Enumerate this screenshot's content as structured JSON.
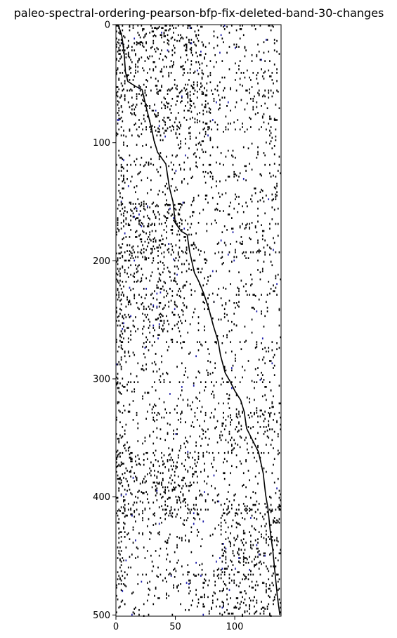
{
  "chart_data": {
    "type": "heatmap",
    "title": "paleo-spectral-ordering-pearson-bfp-fix-deleted-band-30-changes",
    "xlabel": "",
    "ylabel": "",
    "xlim": [
      0,
      139
    ],
    "ylim": [
      501,
      0
    ],
    "x_ticks": [
      0,
      50,
      100
    ],
    "y_ticks": [
      0,
      100,
      200,
      300,
      400,
      500
    ],
    "x_tick_labels": [
      "0",
      "50",
      "100"
    ],
    "y_tick_labels": [
      "0",
      "100",
      "200",
      "300",
      "400",
      "500"
    ],
    "diagonal_path": [
      [
        2,
        0
      ],
      [
        5,
        10
      ],
      [
        7,
        25
      ],
      [
        8,
        40
      ],
      [
        10,
        48
      ],
      [
        16,
        52
      ],
      [
        22,
        55
      ],
      [
        25,
        68
      ],
      [
        28,
        80
      ],
      [
        30,
        88
      ],
      [
        32,
        98
      ],
      [
        35,
        108
      ],
      [
        42,
        118
      ],
      [
        45,
        138
      ],
      [
        48,
        150
      ],
      [
        50,
        168
      ],
      [
        55,
        175
      ],
      [
        60,
        178
      ],
      [
        62,
        192
      ],
      [
        66,
        210
      ],
      [
        70,
        218
      ],
      [
        74,
        228
      ],
      [
        78,
        240
      ],
      [
        82,
        255
      ],
      [
        86,
        268
      ],
      [
        88,
        280
      ],
      [
        92,
        295
      ],
      [
        96,
        302
      ],
      [
        100,
        310
      ],
      [
        105,
        318
      ],
      [
        108,
        328
      ],
      [
        110,
        342
      ],
      [
        114,
        350
      ],
      [
        120,
        362
      ],
      [
        124,
        380
      ],
      [
        126,
        398
      ],
      [
        128,
        410
      ],
      [
        130,
        430
      ],
      [
        132,
        445
      ],
      [
        134,
        465
      ],
      [
        136,
        485
      ],
      [
        138,
        500
      ]
    ],
    "dense_bands": [
      {
        "rows": [
          0,
          40
        ],
        "cols": [
          0,
          75
        ]
      },
      {
        "rows": [
          48,
          95
        ],
        "cols": [
          0,
          80
        ]
      },
      {
        "rows": [
          325,
          345
        ],
        "cols": [
          88,
          139
        ]
      },
      {
        "rows": [
          405,
          500
        ],
        "cols": [
          88,
          139
        ]
      },
      {
        "rows": [
          150,
          260
        ],
        "cols": [
          0,
          60
        ]
      },
      {
        "rows": [
          360,
          420
        ],
        "cols": [
          0,
          70
        ]
      }
    ],
    "cell_colors": {
      "positive": "#000000",
      "negative": "#1a1aa8",
      "background": "#ffffff"
    },
    "grid": false
  }
}
